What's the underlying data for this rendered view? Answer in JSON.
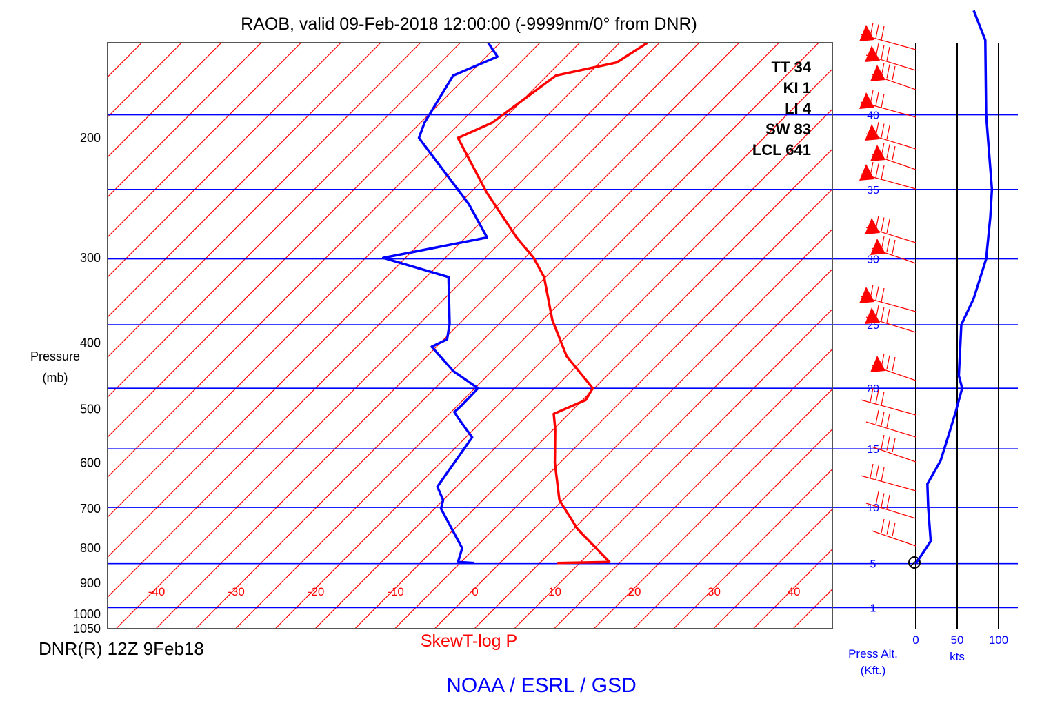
{
  "title": "RAOB, valid 09-Feb-2018 12:00:00 (-9999nm/0° from DNR)",
  "footer": {
    "station": "DNR(R) 12Z 9Feb18",
    "diagram": "SkewT-log P",
    "credit": "NOAA / ESRL / GSD",
    "press_alt": [
      "Press Alt.",
      "(Kft.)"
    ],
    "kts": "kts"
  },
  "y_axis": {
    "label": [
      "Pressure",
      "(mb)"
    ]
  },
  "indices": [
    {
      "name": "TT",
      "value": "34"
    },
    {
      "name": "KI",
      "value": "1"
    },
    {
      "name": "LI",
      "value": "4"
    },
    {
      "name": "SW",
      "value": "83"
    },
    {
      "name": "LCL",
      "value": "641"
    }
  ],
  "colors": {
    "temperature": "#ff0000",
    "dewpoint": "#0000ff",
    "isotherm": "#ff0000",
    "altitude": "#0000ff",
    "frame": "#000000"
  },
  "chart_data": {
    "type": "line",
    "title": "RAOB, valid 09-Feb-2018 12:00:00 (-9999nm/0° from DNR)",
    "xlabel": "",
    "ylabel": "Pressure (mb)",
    "y_scale": "log",
    "pressure_ticks": [
      200,
      300,
      400,
      500,
      600,
      700,
      800,
      900,
      1000,
      1050
    ],
    "pressure_range": [
      145,
      1050
    ],
    "temperature_ticks": [
      -40,
      -30,
      -20,
      -10,
      0,
      10,
      20,
      30,
      40
    ],
    "altitude_levels_kft": [
      {
        "label": "40",
        "p": 185
      },
      {
        "label": "35",
        "p": 238
      },
      {
        "label": "30",
        "p": 301
      },
      {
        "label": "25",
        "p": 376
      },
      {
        "label": "20",
        "p": 466
      },
      {
        "label": "15",
        "p": 572
      },
      {
        "label": "10",
        "p": 697
      },
      {
        "label": "5",
        "p": 843
      },
      {
        "label": "1",
        "p": 978
      }
    ],
    "series": [
      {
        "name": "Temperature",
        "points": [
          {
            "p": 841,
            "t": 7.2
          },
          {
            "p": 838,
            "t": 13.6
          },
          {
            "p": 750,
            "t": 5.5
          },
          {
            "p": 680,
            "t": -0.4
          },
          {
            "p": 600,
            "t": -5.6
          },
          {
            "p": 535,
            "t": -9.8
          },
          {
            "p": 508,
            "t": -11.9
          },
          {
            "p": 485,
            "t": -9.6
          },
          {
            "p": 466,
            "t": -10.2
          },
          {
            "p": 418,
            "t": -17.5
          },
          {
            "p": 370,
            "t": -23.8
          },
          {
            "p": 320,
            "t": -30.2
          },
          {
            "p": 300,
            "t": -33.9
          },
          {
            "p": 280,
            "t": -38.6
          },
          {
            "p": 240,
            "t": -48.1
          },
          {
            "p": 200,
            "t": -58.4
          },
          {
            "p": 190,
            "t": -56.0
          },
          {
            "p": 162,
            "t": -53.9
          },
          {
            "p": 155,
            "t": -47.9
          },
          {
            "p": 145,
            "t": -46.5
          }
        ]
      },
      {
        "name": "Dewpoint",
        "points": [
          {
            "p": 841,
            "t": -3.2
          },
          {
            "p": 838,
            "t": -5.4
          },
          {
            "p": 800,
            "t": -6.6
          },
          {
            "p": 700,
            "t": -14.2
          },
          {
            "p": 680,
            "t": -15.0
          },
          {
            "p": 650,
            "t": -17.4
          },
          {
            "p": 550,
            "t": -19.2
          },
          {
            "p": 520,
            "t": -22.8
          },
          {
            "p": 505,
            "t": -24.6
          },
          {
            "p": 495,
            "t": -24.5
          },
          {
            "p": 466,
            "t": -24.6
          },
          {
            "p": 440,
            "t": -29.8
          },
          {
            "p": 405,
            "t": -35.6
          },
          {
            "p": 395,
            "t": -34.6
          },
          {
            "p": 375,
            "t": -36.2
          },
          {
            "p": 320,
            "t": -42.2
          },
          {
            "p": 300,
            "t": -52.8
          },
          {
            "p": 280,
            "t": -42.3
          },
          {
            "p": 250,
            "t": -48.8
          },
          {
            "p": 200,
            "t": -63.3
          },
          {
            "p": 190,
            "t": -64.5
          },
          {
            "p": 162,
            "t": -66.8
          },
          {
            "p": 152,
            "t": -63.6
          },
          {
            "p": 145,
            "t": -66.5
          }
        ]
      },
      {
        "name": "Wind speed (kts)",
        "points": [
          {
            "alt_kft": 5.0,
            "kts": 0
          },
          {
            "alt_kft": 7.0,
            "kts": 18
          },
          {
            "alt_kft": 10.0,
            "kts": 15
          },
          {
            "alt_kft": 12.0,
            "kts": 14
          },
          {
            "alt_kft": 14.0,
            "kts": 30
          },
          {
            "alt_kft": 16.0,
            "kts": 39
          },
          {
            "alt_kft": 18.0,
            "kts": 48
          },
          {
            "alt_kft": 20.0,
            "kts": 56
          },
          {
            "alt_kft": 21.0,
            "kts": 52
          },
          {
            "alt_kft": 25.0,
            "kts": 55
          },
          {
            "alt_kft": 27.0,
            "kts": 70
          },
          {
            "alt_kft": 30.0,
            "kts": 85
          },
          {
            "alt_kft": 33.0,
            "kts": 90
          },
          {
            "alt_kft": 35.0,
            "kts": 92
          },
          {
            "alt_kft": 40.0,
            "kts": 85
          },
          {
            "alt_kft": 45.0,
            "kts": 84
          },
          {
            "alt_kft": 47.0,
            "kts": 70
          }
        ]
      }
    ],
    "wind_speed_axis": {
      "ticks": [
        0,
        50,
        100
      ],
      "label": "kts"
    }
  }
}
